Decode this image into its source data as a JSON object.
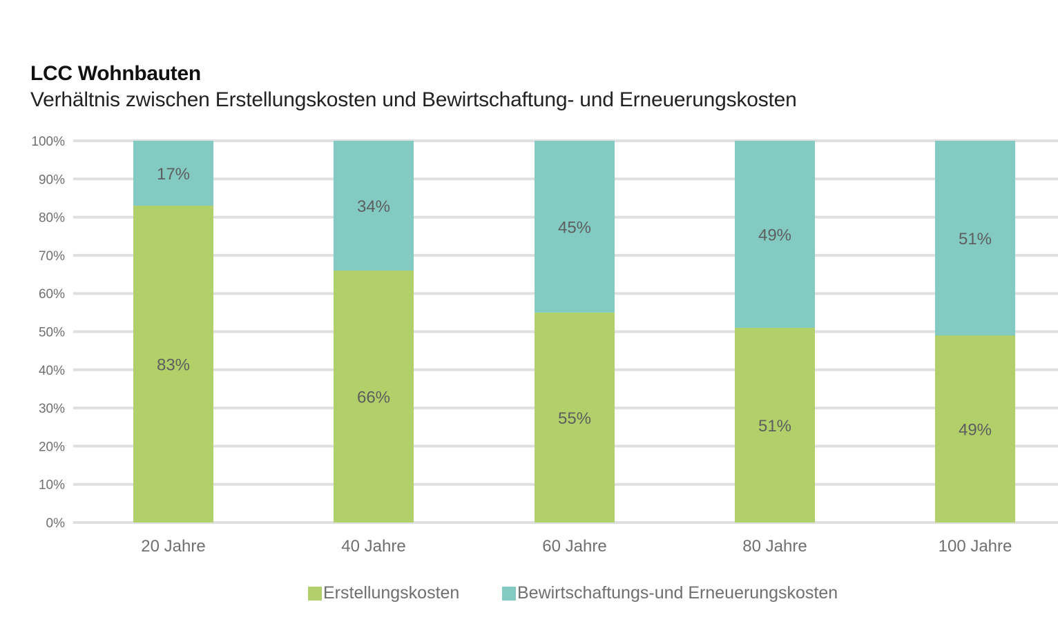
{
  "chart_data": {
    "type": "bar",
    "stacked": true,
    "title": "LCC Wohnbauten",
    "subtitle": "Verhältnis zwischen Erstellungskosten und Bewirtschaftung- und Erneuerungskosten",
    "xlabel": "",
    "ylabel": "",
    "categories": [
      "20 Jahre",
      "40 Jahre",
      "60 Jahre",
      "80 Jahre",
      "100 Jahre"
    ],
    "series": [
      {
        "name": "Erstellungskosten",
        "color": "#b2d06a",
        "values": [
          83,
          66,
          55,
          51,
          49
        ],
        "labels": [
          "83%",
          "66%",
          "55%",
          "51%",
          "49%"
        ]
      },
      {
        "name": "Bewirtschaftungs-und Erneuerungskosten",
        "color": "#82cac2",
        "values": [
          17,
          34,
          45,
          49,
          51
        ],
        "labels": [
          "17%",
          "34%",
          "45%",
          "49%",
          "51%"
        ]
      }
    ],
    "ylim": [
      0,
      100
    ],
    "yticks": [
      "0%",
      "10%",
      "20%",
      "30%",
      "40%",
      "50%",
      "60%",
      "70%",
      "80%",
      "90%",
      "100%"
    ],
    "grid": true,
    "legend_position": "bottom"
  }
}
